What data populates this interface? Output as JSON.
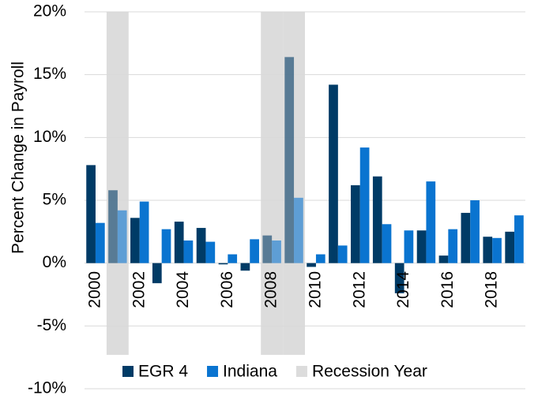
{
  "chart_data": {
    "type": "bar",
    "y_label": "Percent Change in Payroll",
    "categories": [
      "2000",
      null,
      "2002",
      null,
      "2004",
      null,
      "2006",
      null,
      "2008",
      null,
      "2010",
      null,
      "2012",
      null,
      "2014",
      null,
      "2016",
      null,
      "2018",
      null
    ],
    "series": [
      {
        "name": "EGR 4",
        "color": "#003b66",
        "values": [
          7.8,
          5.8,
          3.6,
          -1.6,
          3.3,
          2.8,
          -0.1,
          -0.6,
          2.2,
          16.4,
          -0.3,
          14.2,
          6.2,
          6.9,
          -2.4,
          2.6,
          0.6,
          4.0,
          2.1,
          2.5
        ]
      },
      {
        "name": "Indiana",
        "color": "#0a74d0",
        "values": [
          3.2,
          4.2,
          4.9,
          2.7,
          1.8,
          1.7,
          0.7,
          1.9,
          1.8,
          5.2,
          0.7,
          1.4,
          9.2,
          3.1,
          2.6,
          6.5,
          2.7,
          5.0,
          2.0,
          3.8
        ]
      }
    ],
    "recession": {
      "name": "Recession Year",
      "color": "#dcdcdc",
      "category_indices": [
        1,
        8,
        9
      ]
    },
    "ylim": [
      -10,
      20
    ],
    "yticks": [
      {
        "value": -10,
        "label": "-10%"
      },
      {
        "value": -5,
        "label": "-5%"
      },
      {
        "value": 0,
        "label": "0%"
      },
      {
        "value": 5,
        "label": "5%"
      },
      {
        "value": 10,
        "label": "10%"
      },
      {
        "value": 15,
        "label": "15%"
      },
      {
        "value": 20,
        "label": "20%"
      }
    ],
    "grid": true,
    "legend": "bottom"
  }
}
